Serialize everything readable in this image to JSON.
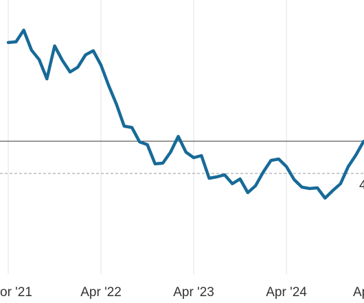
{
  "chart_data": {
    "type": "line",
    "x": [
      0,
      1,
      2,
      3,
      4,
      5,
      6,
      7,
      8,
      9,
      10,
      11,
      12,
      13,
      14,
      15,
      16,
      17,
      18,
      19,
      20,
      21,
      22,
      23,
      24,
      25,
      26,
      27,
      28,
      29,
      30,
      31,
      32,
      33,
      34,
      35,
      36,
      37,
      38,
      39,
      40,
      41,
      42,
      43,
      44,
      45,
      46
    ],
    "series": [
      {
        "color": "#176a97",
        "values": [
          338,
          339,
          356,
          327,
          313,
          285,
          333,
          312,
          295,
          302,
          320,
          326,
          305,
          275,
          248,
          216,
          214,
          193,
          189,
          161,
          162,
          178,
          201,
          178,
          170,
          173,
          140,
          142,
          145,
          132,
          139,
          119,
          129,
          149,
          166,
          168,
          157,
          138,
          127,
          125,
          126,
          111,
          122,
          132,
          157,
          174,
          194
        ]
      }
    ],
    "xlim": [
      -1.07,
      46.04
    ],
    "xticks": [
      {
        "value": 0,
        "label": "or '21"
      },
      {
        "value": 12,
        "label": "Apr '22"
      },
      {
        "value": 24,
        "label": "Apr '23"
      },
      {
        "value": 36,
        "label": "Apr '24"
      },
      {
        "value": 48,
        "label": "Ap"
      }
    ],
    "ylim": [
      0,
      400
    ],
    "reference_lines": [
      {
        "value": 194,
        "style": "solid",
        "color": "#333333"
      },
      {
        "value": 147,
        "style": "dashed",
        "color": "#999999"
      }
    ],
    "annotation": "4",
    "grid": true
  }
}
